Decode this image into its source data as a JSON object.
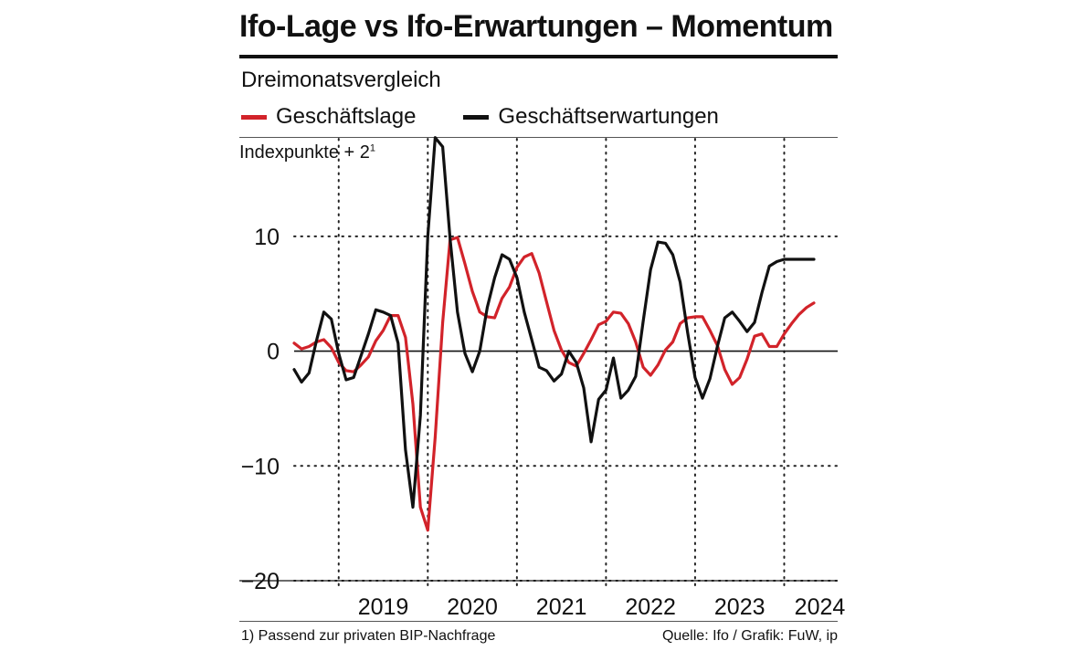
{
  "header": {
    "title": "Ifo-Lage vs Ifo-Erwartungen – Momentum",
    "subtitle": "Dreimonatsvergleich",
    "unit_label": "Indexpunkte + 2",
    "unit_footnote_mark": "1"
  },
  "legend": [
    {
      "label": "Geschäftslage",
      "color": "#d2232a"
    },
    {
      "label": "Geschäftserwartungen",
      "color": "#111111"
    }
  ],
  "footer": {
    "footnote": "1) Passend zur privaten BIP-Nachfrage",
    "source": "Quelle: Ifo / Grafik: FuW, ip"
  },
  "chart_data": {
    "type": "line",
    "title": "Ifo-Lage vs Ifo-Erwartungen – Momentum",
    "subtitle": "Dreimonatsvergleich",
    "ylabel": "Indexpunkte + 2",
    "xlabel": "",
    "ylim": [
      -20,
      18.5
    ],
    "xlim": [
      2018.5,
      2024.6
    ],
    "y_ticks": [
      10,
      0,
      -10,
      -20
    ],
    "y_tick_labels": [
      "10",
      "0",
      "−10",
      "−20"
    ],
    "year_labels": [
      "2019",
      "2020",
      "2021",
      "2022",
      "2023",
      "2024"
    ],
    "year_boundaries": [
      2019,
      2020,
      2021,
      2022,
      2023,
      2024
    ],
    "grid": true,
    "series": [
      {
        "name": "Geschäftslage",
        "color": "#d2232a",
        "x": [
          2018.5,
          2018.583,
          2018.667,
          2018.75,
          2018.833,
          2018.917,
          2019.0,
          2019.083,
          2019.167,
          2019.25,
          2019.333,
          2019.417,
          2019.5,
          2019.583,
          2019.667,
          2019.75,
          2019.833,
          2019.917,
          2020.0,
          2020.083,
          2020.167,
          2020.25,
          2020.333,
          2020.417,
          2020.5,
          2020.583,
          2020.667,
          2020.75,
          2020.833,
          2020.917,
          2021.0,
          2021.083,
          2021.167,
          2021.25,
          2021.333,
          2021.417,
          2021.5,
          2021.583,
          2021.667,
          2021.75,
          2021.833,
          2021.917,
          2022.0,
          2022.083,
          2022.167,
          2022.25,
          2022.333,
          2022.417,
          2022.5,
          2022.583,
          2022.667,
          2022.75,
          2022.833,
          2022.917,
          2023.0,
          2023.083,
          2023.167,
          2023.25,
          2023.333,
          2023.417,
          2023.5,
          2023.583,
          2023.667,
          2023.75,
          2023.833,
          2023.917,
          2024.0,
          2024.083,
          2024.167,
          2024.25,
          2024.333
        ],
        "values": [
          0.7,
          0.2,
          0.4,
          0.8,
          1.0,
          0.3,
          -1.0,
          -1.7,
          -1.8,
          -1.2,
          -0.5,
          0.9,
          1.8,
          3.1,
          3.1,
          1.2,
          -4.6,
          -13.6,
          -15.6,
          -7.5,
          2.5,
          9.7,
          9.9,
          7.6,
          5.2,
          3.4,
          3.0,
          2.9,
          4.6,
          5.6,
          7.3,
          8.2,
          8.5,
          6.8,
          4.3,
          1.8,
          0.1,
          -1.0,
          -1.3,
          -0.2,
          1.0,
          2.3,
          2.6,
          3.4,
          3.3,
          2.4,
          0.8,
          -1.4,
          -2.1,
          -1.2,
          0.1,
          0.8,
          2.4,
          2.9,
          3.0,
          3.0,
          1.8,
          0.5,
          -1.6,
          -2.9,
          -2.3,
          -0.7,
          1.3,
          1.5,
          0.4,
          0.4,
          1.5,
          2.4,
          3.2,
          3.8,
          4.2
        ]
      },
      {
        "name": "Geschäftserwartungen",
        "color": "#111111",
        "x": [
          2018.5,
          2018.583,
          2018.667,
          2018.75,
          2018.833,
          2018.917,
          2019.0,
          2019.083,
          2019.167,
          2019.25,
          2019.333,
          2019.417,
          2019.5,
          2019.583,
          2019.667,
          2019.75,
          2019.833,
          2019.917,
          2020.0,
          2020.083,
          2020.167,
          2020.25,
          2020.333,
          2020.417,
          2020.5,
          2020.583,
          2020.667,
          2020.75,
          2020.833,
          2020.917,
          2021.0,
          2021.083,
          2021.167,
          2021.25,
          2021.333,
          2021.417,
          2021.5,
          2021.583,
          2021.667,
          2021.75,
          2021.833,
          2021.917,
          2022.0,
          2022.083,
          2022.167,
          2022.25,
          2022.333,
          2022.417,
          2022.5,
          2022.583,
          2022.667,
          2022.75,
          2022.833,
          2022.917,
          2023.0,
          2023.083,
          2023.167,
          2023.25,
          2023.333,
          2023.417,
          2023.5,
          2023.583,
          2023.667,
          2023.75,
          2023.833,
          2023.917,
          2024.0,
          2024.083,
          2024.167,
          2024.25,
          2024.333
        ],
        "values": [
          -1.6,
          -2.7,
          -1.9,
          0.9,
          3.4,
          2.8,
          -0.2,
          -2.5,
          -2.3,
          -0.4,
          1.5,
          3.6,
          3.4,
          3.1,
          0.7,
          -8.6,
          -13.6,
          -5.6,
          10.0,
          18.6,
          17.8,
          9.8,
          3.4,
          -0.2,
          -1.8,
          0.0,
          3.8,
          6.4,
          8.4,
          8.0,
          6.4,
          3.4,
          1.0,
          -1.4,
          -1.7,
          -2.6,
          -2.0,
          0.0,
          -1.0,
          -3.2,
          -7.9,
          -4.2,
          -3.4,
          -0.6,
          -4.1,
          -3.4,
          -2.2,
          2.6,
          7.1,
          9.5,
          9.4,
          8.4,
          6.0,
          1.6,
          -2.3,
          -4.1,
          -2.4,
          0.4,
          2.9,
          3.4,
          2.6,
          1.7,
          2.5,
          5.1,
          7.4,
          7.8,
          8.0,
          8.0,
          8.0,
          8.0,
          8.0
        ]
      }
    ]
  }
}
